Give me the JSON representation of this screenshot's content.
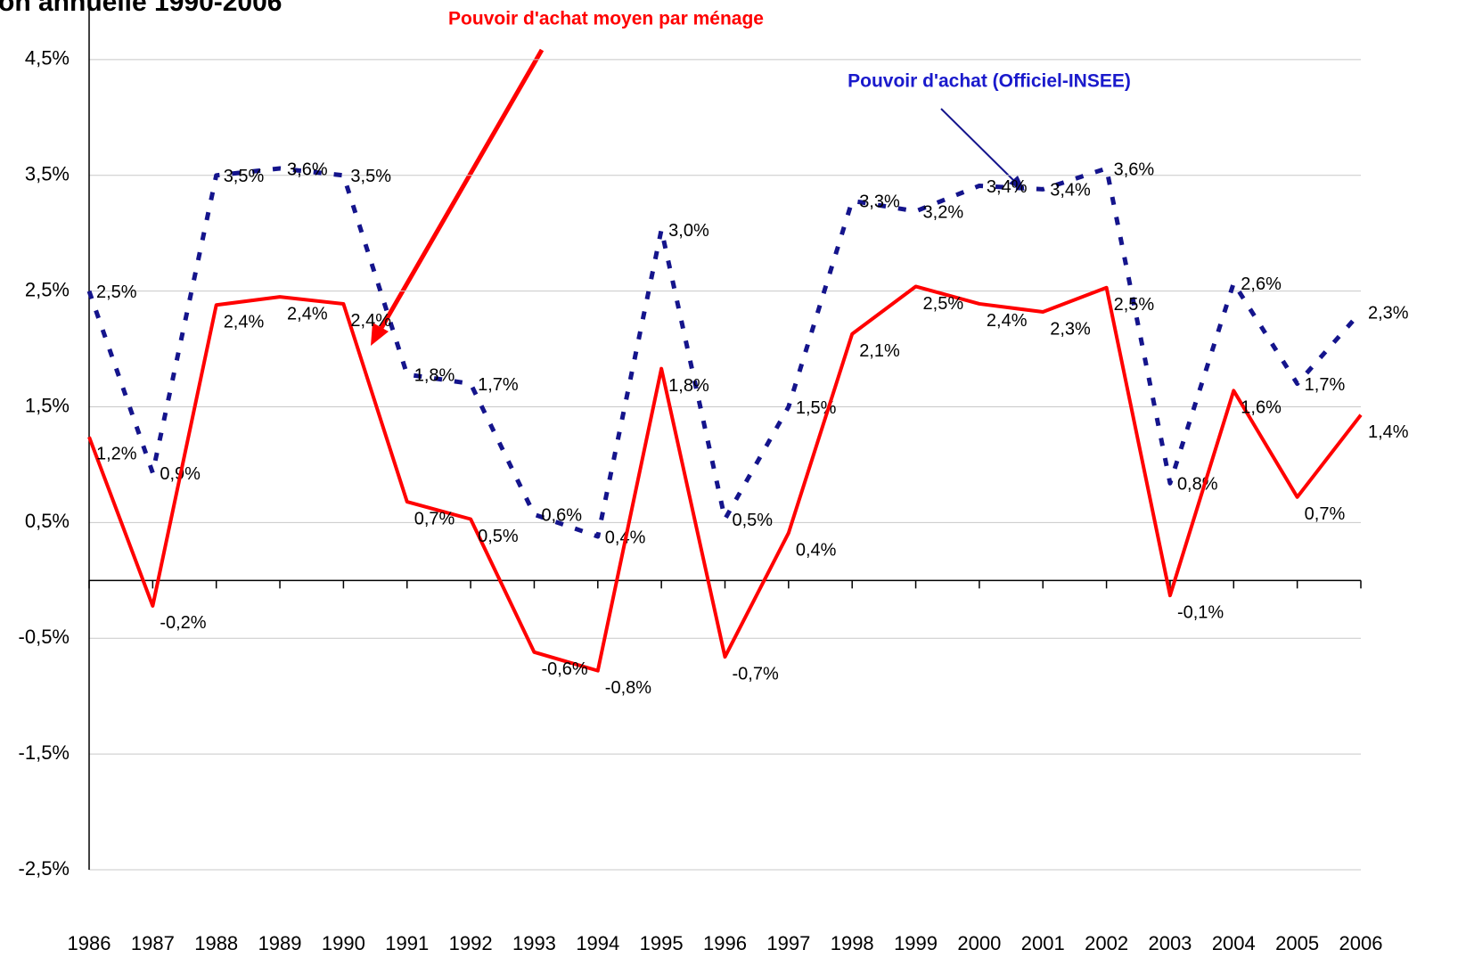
{
  "chart_data": {
    "type": "line",
    "title": "on annuelle 1990-2006",
    "x": [
      1986,
      1987,
      1988,
      1989,
      1990,
      1991,
      1992,
      1993,
      1994,
      1995,
      1996,
      1997,
      1998,
      1999,
      2000,
      2001,
      2002,
      2003,
      2004,
      2005,
      2006
    ],
    "xlim": [
      1986,
      2006
    ],
    "xticks": [
      1986,
      1987,
      1988,
      1989,
      1990,
      1991,
      1992,
      1993,
      1994,
      1995,
      1996,
      1997,
      1998,
      1999,
      2000,
      2001,
      2002,
      2003,
      2004,
      2005,
      2006
    ],
    "ylim": [
      -2.5,
      5.0
    ],
    "yticks": [
      {
        "value": -2.5,
        "label": "-2,5%"
      },
      {
        "value": -1.5,
        "label": "-1,5%"
      },
      {
        "value": -0.5,
        "label": "-0,5%"
      },
      {
        "value": 0.5,
        "label": "0,5%"
      },
      {
        "value": 1.5,
        "label": "1,5%"
      },
      {
        "value": 2.5,
        "label": "2,5%"
      },
      {
        "value": 3.5,
        "label": "3,5%"
      },
      {
        "value": 4.5,
        "label": "4,5%"
      }
    ],
    "grid": true,
    "series": [
      {
        "name": "Pouvoir d'achat (Officiel-INSEE)",
        "color": "#14148c",
        "dashed": true,
        "values": [
          2.5,
          0.93,
          3.5,
          3.56,
          3.5,
          1.78,
          1.7,
          0.57,
          0.38,
          3.03,
          0.53,
          1.5,
          3.28,
          3.19,
          3.41,
          3.38,
          3.56,
          0.84,
          2.57,
          1.7,
          2.32
        ],
        "value_labels": [
          "2,5%",
          "0,9%",
          "3,5%",
          "3,6%",
          "3,5%",
          "1,8%",
          "1,7%",
          "0,6%",
          "0,4%",
          "3,0%",
          "0,5%",
          "1,5%",
          "3,3%",
          "3,2%",
          "3,4%",
          "3,4%",
          "3,6%",
          "0,8%",
          "2,6%",
          "1,7%",
          "2,3%"
        ]
      },
      {
        "name": "Pouvoir d'achat moyen par ménage",
        "color": "#ff0000",
        "dashed": false,
        "values": [
          1.24,
          -0.22,
          2.38,
          2.45,
          2.39,
          0.68,
          0.53,
          -0.62,
          -0.78,
          1.83,
          -0.66,
          0.41,
          2.13,
          2.54,
          2.39,
          2.32,
          2.53,
          -0.13,
          1.64,
          0.72,
          1.43
        ],
        "value_labels": [
          "1,2%",
          "-0,2%",
          "2,4%",
          "2,4%",
          "2,4%",
          "0,7%",
          "0,5%",
          "-0,6%",
          "-0,8%",
          "1,8%",
          "-0,7%",
          "0,4%",
          "2,1%",
          "2,5%",
          "2,4%",
          "2,3%",
          "2,5%",
          "-0,1%",
          "1,6%",
          "0,7%",
          "1,4%"
        ]
      }
    ]
  }
}
